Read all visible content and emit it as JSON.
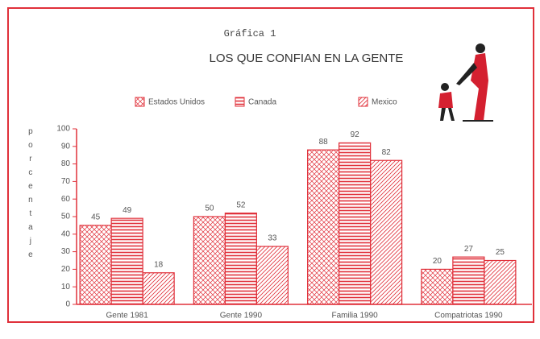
{
  "chart_data": {
    "type": "bar",
    "title": "Gráfica 1",
    "subtitle": "LOS QUE CONFIAN EN LA GENTE",
    "y_label": "porcentaje",
    "categories": [
      "Gente 1981",
      "Gente 1990",
      "Familia 1990",
      "Compatriotas 1990"
    ],
    "series": [
      {
        "name": "Estados Unidos",
        "color": "#e0303a",
        "pattern": "crosshatch",
        "values": [
          45,
          50,
          88,
          20
        ]
      },
      {
        "name": "Canada",
        "color": "#e0303a",
        "pattern": "horizontal",
        "values": [
          49,
          52,
          92,
          27
        ]
      },
      {
        "name": "Mexico",
        "color": "#e0303a",
        "pattern": "diagonal",
        "values": [
          18,
          33,
          82,
          25
        ]
      }
    ],
    "ylim": [
      0,
      100
    ],
    "yticks": [
      0,
      10,
      20,
      30,
      40,
      50,
      60,
      70,
      80,
      90,
      100
    ]
  }
}
